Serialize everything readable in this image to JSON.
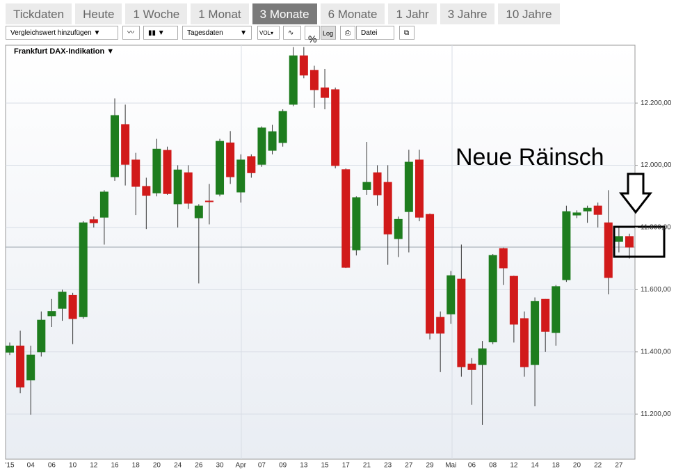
{
  "tabs": [
    "Tickdaten",
    "Heute",
    "1 Woche",
    "1 Monat",
    "3 Monate",
    "6 Monate",
    "1 Jahr",
    "3 Jahre",
    "10 Jahre"
  ],
  "active_tab": "3 Monate",
  "toolbar": {
    "compare": "Vergleichswert hinzufügen",
    "interval": "Tagesdaten",
    "vol": "VOL",
    "percent": "%",
    "log": "Log",
    "file": "Datei"
  },
  "chart_data": {
    "type": "candlestick",
    "annotation": "Neue Räinsch",
    "categories": [
      "'15",
      null,
      "04",
      null,
      "06",
      null,
      "10",
      null,
      "12",
      null,
      "16",
      null,
      "18",
      null,
      "20",
      null,
      "24",
      null,
      "26",
      null,
      "30",
      null,
      "Apr",
      null,
      "07",
      null,
      "09",
      null,
      "13",
      null,
      "15",
      null,
      "17",
      null,
      "21",
      null,
      "23",
      null,
      "27",
      null,
      "29",
      null,
      "Mai",
      null,
      "06",
      null,
      "08",
      null,
      "12",
      null,
      "14",
      null,
      "18",
      null,
      "20",
      null,
      "22",
      null,
      "27",
      null
    ],
    "series": [
      {
        "name": "Frankfurt DAX-Indikation",
        "up_color": "#1e7d1e",
        "down_color": "#d11a1a",
        "open": [
          11399,
          11419,
          11310,
          11400,
          11516,
          11540,
          11582,
          11513,
          11825,
          11833,
          11963,
          12131,
          12017,
          11932,
          11911,
          12048,
          11876,
          11976,
          11831,
          11885,
          11907,
          12072,
          11914,
          12028,
          12003,
          12048,
          12073,
          12196,
          12352,
          12305,
          12249,
          12243,
          11986,
          11728,
          11922,
          11976,
          11945,
          11764,
          11851,
          12017,
          11842,
          11511,
          11522,
          11634,
          11361,
          11359,
          11432,
          11732,
          11643,
          11507,
          11359,
          11569,
          11462,
          11632,
          11840,
          11853,
          11869,
          11815,
          11755,
          11771
        ],
        "high": [
          11430,
          11468,
          11420,
          11530,
          11570,
          11600,
          11590,
          11820,
          11835,
          11920,
          12215,
          12195,
          12040,
          11960,
          12085,
          12060,
          12000,
          12000,
          11875,
          11940,
          12085,
          12110,
          12035,
          12035,
          12125,
          12130,
          12180,
          12380,
          12380,
          12320,
          12310,
          12250,
          11990,
          11900,
          12075,
          12000,
          12000,
          11835,
          12050,
          12050,
          11845,
          11530,
          11660,
          11745,
          11380,
          11435,
          11715,
          11735,
          11645,
          11530,
          11575,
          11570,
          11615,
          11870,
          11855,
          11870,
          11880,
          11920,
          11800,
          11780
        ],
        "low": [
          11390,
          11267,
          11198,
          11385,
          11480,
          11500,
          11425,
          11507,
          11800,
          11745,
          11950,
          11935,
          11840,
          11795,
          11900,
          11905,
          11800,
          11860,
          11620,
          11810,
          11900,
          11940,
          11880,
          11960,
          11995,
          12035,
          12060,
          12190,
          12280,
          12185,
          12180,
          11990,
          11670,
          11710,
          11905,
          11870,
          11680,
          11705,
          11720,
          11820,
          11440,
          11335,
          11490,
          11320,
          11230,
          11165,
          11425,
          11615,
          11430,
          11320,
          11225,
          11400,
          11420,
          11625,
          11830,
          11815,
          11800,
          11585,
          11720,
          11700
        ],
        "close": [
          11419,
          11287,
          11390,
          11502,
          11530,
          11592,
          11507,
          11815,
          11815,
          11914,
          12160,
          12003,
          11932,
          11903,
          12052,
          11909,
          11985,
          11878,
          11869,
          11883,
          12077,
          11963,
          12017,
          11976,
          12120,
          12108,
          12173,
          12352,
          12290,
          12243,
          12218,
          11999,
          11672,
          11896,
          11945,
          11905,
          11779,
          11826,
          12010,
          11833,
          11460,
          11460,
          11645,
          11352,
          11343,
          11410,
          11710,
          11670,
          11489,
          11352,
          11562,
          11466,
          11610,
          11851,
          11847,
          11862,
          11842,
          11639,
          11771,
          11737
        ]
      }
    ],
    "reference_line": 11737,
    "ylim": [
      11055,
      12386
    ],
    "yticks": [
      {
        "value": 11200,
        "label": "11.200,00"
      },
      {
        "value": 11400,
        "label": "11.400,00"
      },
      {
        "value": 11600,
        "label": "11.600,00"
      },
      {
        "value": 11800,
        "label": "11.800,00"
      },
      {
        "value": 12000,
        "label": "12.000,00"
      },
      {
        "value": 12200,
        "label": "12.200,00"
      }
    ],
    "grid": true
  }
}
